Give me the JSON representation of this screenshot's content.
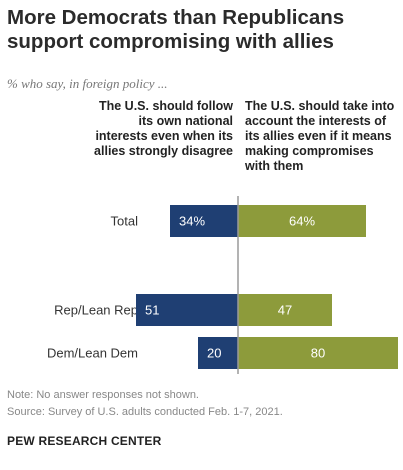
{
  "title": "More Democrats than Republicans support compromising with allies",
  "subtitle": "% who say, in foreign policy ...",
  "colors": {
    "left_series": "#1f3f73",
    "right_series": "#8d9b3b",
    "divider": "#9a9a9a"
  },
  "chart_data": {
    "type": "bar",
    "orientation": "horizontal-diverging",
    "categories": [
      "Total",
      "Rep/Lean Rep",
      "Dem/Lean Dem"
    ],
    "series": [
      {
        "name": "The U.S. should follow its own national interests even when its allies strongly disagree",
        "values": [
          34,
          51,
          20
        ],
        "labels": [
          "34%",
          "51",
          "20"
        ],
        "direction": "left"
      },
      {
        "name": "The U.S. should take into account the interests of its allies even if it means making compromises with them",
        "values": [
          64,
          47,
          80
        ],
        "labels": [
          "64%",
          "47",
          "80"
        ],
        "direction": "right"
      }
    ],
    "grid": false,
    "legend": "column headers above bars"
  },
  "footer": {
    "note": "Note: No answer responses not shown.",
    "source": "Source: Survey of U.S. adults conducted Feb. 1-7, 2021.",
    "org": "PEW RESEARCH CENTER"
  }
}
